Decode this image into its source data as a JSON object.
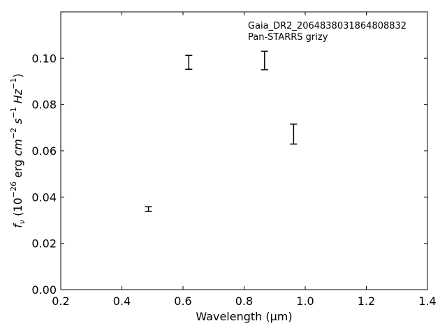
{
  "chart_data": {
    "type": "scatter",
    "title": "",
    "xlabel": "Wavelength (μm)",
    "ylabel": {
      "base": "f",
      "sub": "ν",
      "units": [
        {
          "t": " (10"
        },
        {
          "t": "−26",
          "sup": true
        },
        {
          "t": " erg "
        },
        {
          "t": "cm",
          "italic": true
        },
        {
          "t": "−2",
          "sup": true
        },
        {
          "t": " "
        },
        {
          "t": "s",
          "italic": true
        },
        {
          "t": "−1",
          "sup": true
        },
        {
          "t": " "
        },
        {
          "t": "Hz",
          "italic": true
        },
        {
          "t": "−1",
          "sup": true
        },
        {
          "t": ")"
        }
      ]
    },
    "xlim": [
      0.2,
      1.4
    ],
    "ylim": [
      0.0,
      0.12
    ],
    "xticks": [
      "0.2",
      "0.4",
      "0.6",
      "0.8",
      "1.0",
      "1.2",
      "1.4"
    ],
    "yticks": [
      "0.00",
      "0.02",
      "0.04",
      "0.06",
      "0.08",
      "0.10"
    ],
    "grid": false,
    "annotations": [
      "Gaia_DR2_2064838031864808832",
      "Pan-STARRS grizy"
    ],
    "annotation_position": "top-right",
    "series": [
      {
        "marker": "errorbar",
        "color": "#000000",
        "points": [
          {
            "x": 0.487,
            "y": 0.0348,
            "yerr": 0.001
          },
          {
            "x": 0.619,
            "y": 0.0982,
            "yerr": 0.003
          },
          {
            "x": 0.867,
            "y": 0.099,
            "yerr": 0.004
          },
          {
            "x": 0.962,
            "y": 0.0672,
            "yerr": 0.0043
          }
        ]
      }
    ]
  }
}
